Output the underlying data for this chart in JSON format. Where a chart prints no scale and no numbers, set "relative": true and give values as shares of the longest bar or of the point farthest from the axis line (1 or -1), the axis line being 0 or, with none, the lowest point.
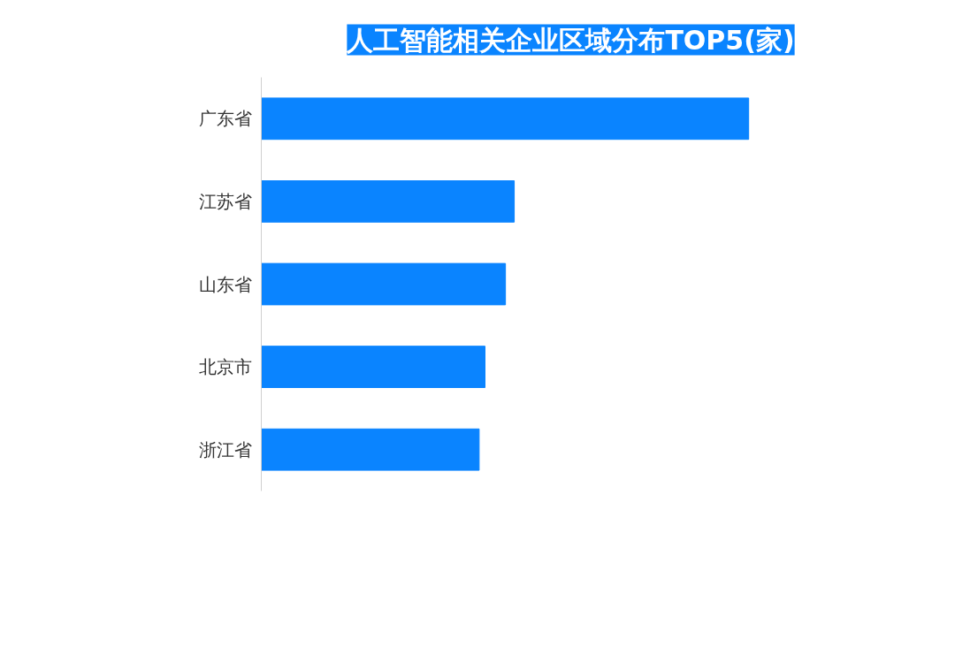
{
  "chart_data": {
    "type": "bar",
    "orientation": "horizontal",
    "relative": true,
    "title": "人工智能相关企业区域分布TOP5(家)",
    "categories": [
      "广东省",
      "江苏省",
      "山东省",
      "北京市",
      "浙江省"
    ],
    "values": [
      1,
      0.519,
      0.501,
      0.459,
      0.447
    ],
    "color": "#0a84ff",
    "grid": false
  }
}
